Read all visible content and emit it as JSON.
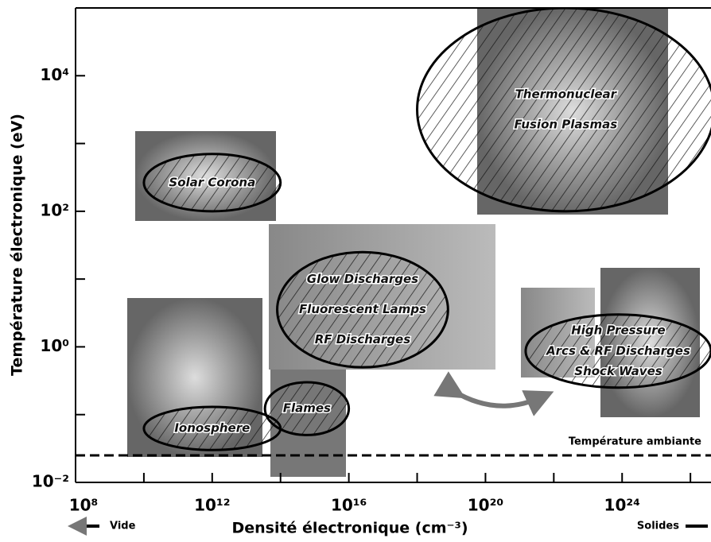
{
  "chart_data": {
    "type": "regions",
    "xlabel": "Densité électronique (cm⁻³)",
    "ylabel": "Température électronique (eV)",
    "xscale": "log",
    "yscale": "log",
    "xlim": [
      100000000.0,
      4e+26
    ],
    "ylim": [
      0.01,
      100000
    ],
    "xticks": [
      {
        "value": 100000000.0,
        "label": "10⁸"
      },
      {
        "value": 1000000000000.0,
        "label": "10¹²"
      },
      {
        "value": 1e+16,
        "label": "10¹⁶"
      },
      {
        "value": 1e+20,
        "label": "10²⁰"
      },
      {
        "value": 1e+24,
        "label": "10²⁴"
      }
    ],
    "xminor": [
      10000000000.0,
      100000000000000.0,
      1e+18,
      1e+22,
      1e+26
    ],
    "yticks": [
      {
        "value": 0.01,
        "label": "10⁻²"
      },
      {
        "value": 1,
        "label": "10⁰"
      },
      {
        "value": 100,
        "label": "10²"
      },
      {
        "value": 10000,
        "label": "10⁴"
      }
    ],
    "yminor": [
      0.1,
      10,
      1000
    ],
    "reference": {
      "value": 0.025,
      "label": "Température ambiante"
    },
    "left_note": "Vide",
    "right_note": "Solides",
    "regions": [
      {
        "lines": [
          "Thermonuclear",
          "Fusion Plasmas"
        ],
        "xrange": [
          1e+18,
          5e+26
        ],
        "yrange": [
          100,
          100000
        ]
      },
      {
        "lines": [
          "Solar Corona"
        ],
        "xrange": [
          10000000000.0,
          100000000000000.0
        ],
        "yrange": [
          100,
          700
        ]
      },
      {
        "lines": [
          "Glow Discharges",
          "Fluorescent Lamps",
          "RF Discharges"
        ],
        "xrange": [
          80000000000000.0,
          8e+18
        ],
        "yrange": [
          0.5,
          25
        ]
      },
      {
        "lines": [
          "High Pressure",
          "Arcs & RF Discharges",
          "Shock Waves"
        ],
        "xrange": [
          1.5e+21,
          4e+26
        ],
        "yrange": [
          0.25,
          3
        ]
      },
      {
        "lines": [
          "Ionosphere"
        ],
        "xrange": [
          10000000000.0,
          100000000000000.0
        ],
        "yrange": [
          0.03,
          0.13
        ]
      },
      {
        "lines": [
          "Flames"
        ],
        "xrange": [
          35000000000000.0,
          1e+16
        ],
        "yrange": [
          0.05,
          0.3
        ]
      }
    ]
  }
}
